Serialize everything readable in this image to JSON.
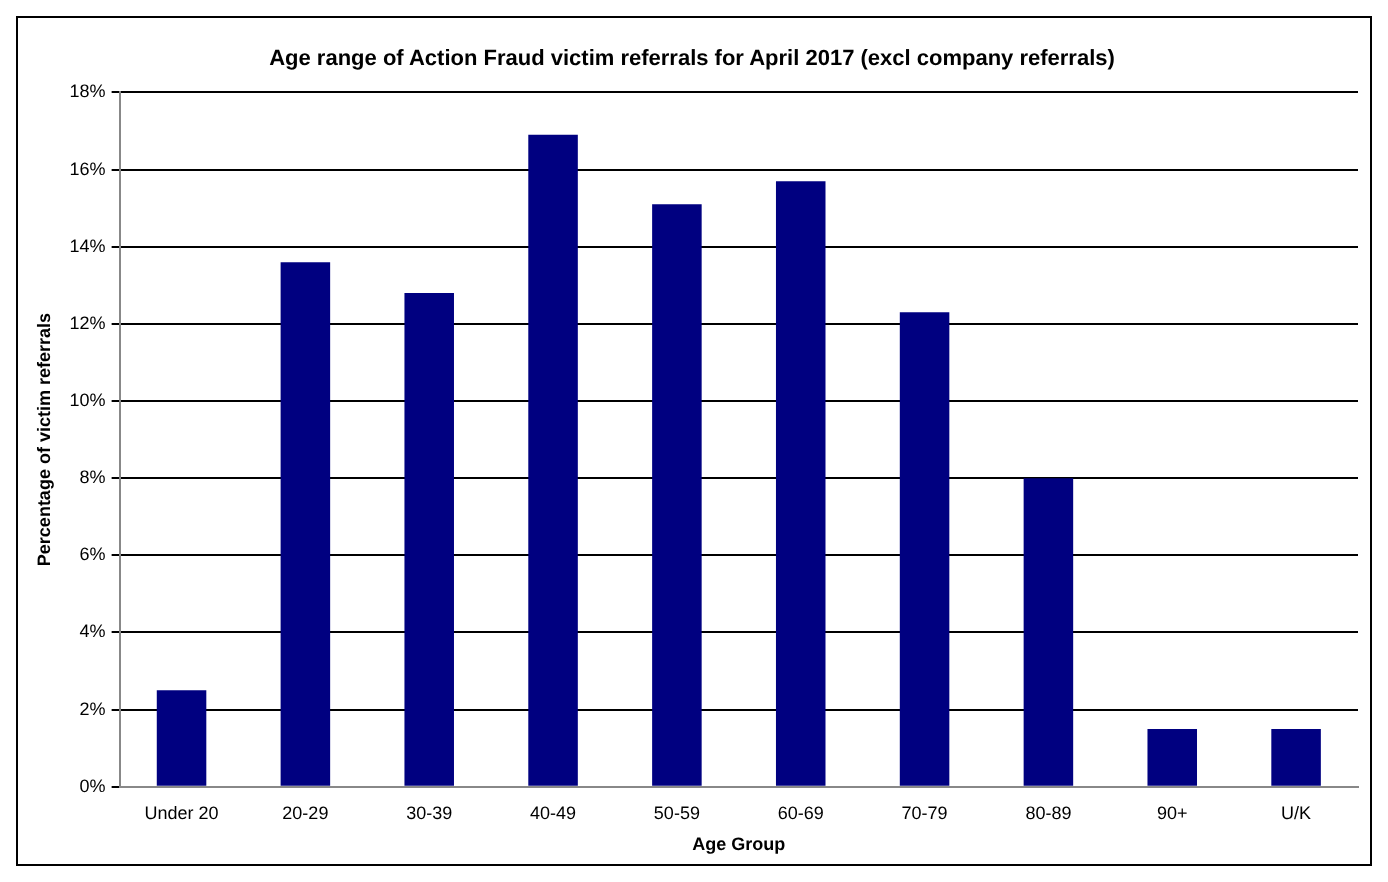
{
  "chart_data": {
    "type": "bar",
    "title": "Age range of Action Fraud victim referrals for April 2017 (excl company referrals)",
    "xlabel": "Age Group",
    "ylabel": "Percentage of victim referrals",
    "categories": [
      "Under 20",
      "20-29",
      "30-39",
      "40-49",
      "50-59",
      "60-69",
      "70-79",
      "80-89",
      "90+",
      "U/K"
    ],
    "values": [
      2.5,
      13.6,
      12.8,
      16.9,
      15.1,
      15.7,
      12.3,
      8.0,
      1.5,
      1.5
    ],
    "color": "#000080",
    "ylim": [
      0,
      18
    ],
    "yticks": [
      {
        "value": 0,
        "label": "0%"
      },
      {
        "value": 2,
        "label": "2%"
      },
      {
        "value": 4,
        "label": "4%"
      },
      {
        "value": 6,
        "label": "6%"
      },
      {
        "value": 8,
        "label": "8%"
      },
      {
        "value": 10,
        "label": "10%"
      },
      {
        "value": 12,
        "label": "12%"
      },
      {
        "value": 14,
        "label": "14%"
      },
      {
        "value": 16,
        "label": "16%"
      },
      {
        "value": 18,
        "label": "18%"
      }
    ],
    "grid": "y",
    "legend": false
  }
}
